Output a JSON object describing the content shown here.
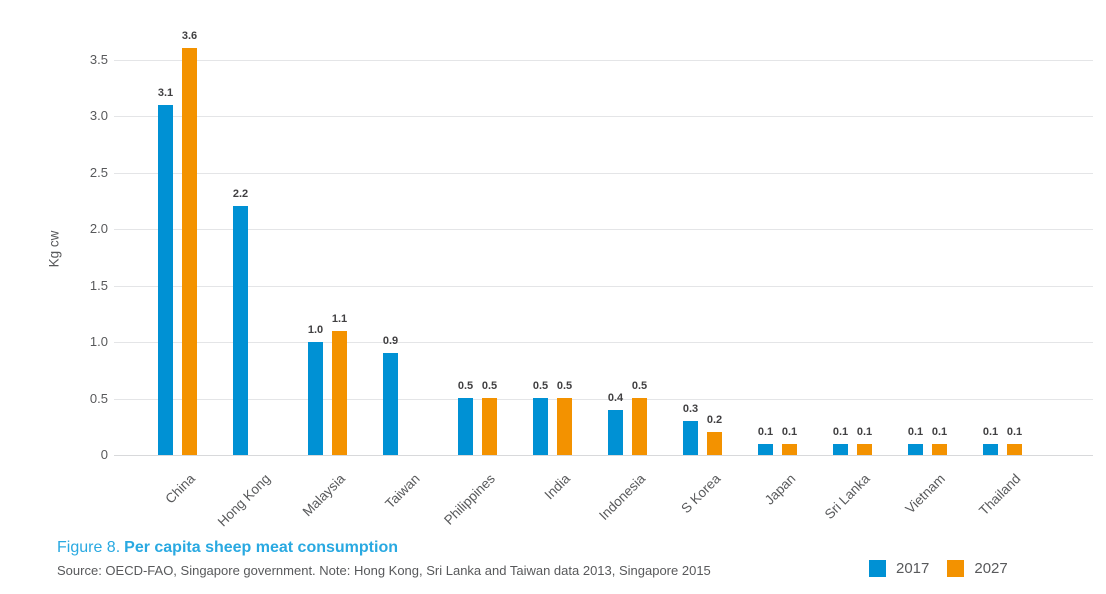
{
  "figure": {
    "caption_prefix": "Figure 8.",
    "caption_title": "Per capita sheep meat consumption",
    "source": "Source: OECD-FAO, Singapore government. Note: Hong Kong, Sri Lanka and Taiwan data 2013, Singapore 2015",
    "caption_color": "#29A9E1"
  },
  "chart_data": {
    "type": "bar",
    "title": "Per capita sheep meat consumption",
    "ylabel": "Kg cw",
    "ylim": [
      0,
      3.75
    ],
    "ytick_labels": [
      "0",
      "0.5",
      "1.0",
      "1.5",
      "2.0",
      "2.5",
      "3.0",
      "3.5"
    ],
    "grid": true,
    "legend_position": "bottom-right",
    "categories": [
      "China",
      "Hong Kong",
      "Malaysia",
      "Taiwan",
      "Philippines",
      "India",
      "Indonesia",
      "S Korea",
      "Japan",
      "Sri Lanka",
      "Vietnam",
      "Thailand"
    ],
    "series": [
      {
        "name": "2017",
        "color": "#0091D4",
        "values": [
          3.1,
          2.2,
          1.0,
          0.9,
          0.5,
          0.5,
          0.4,
          0.3,
          0.1,
          0.1,
          0.1,
          0.1
        ]
      },
      {
        "name": "2027",
        "color": "#F39200",
        "values": [
          3.6,
          null,
          1.1,
          null,
          0.5,
          0.5,
          0.5,
          0.2,
          0.1,
          0.1,
          0.1,
          0.1
        ]
      }
    ]
  },
  "colors": {
    "grid": "#E4E5E7",
    "axis_text": "#58595B",
    "value_text": "#414042"
  }
}
